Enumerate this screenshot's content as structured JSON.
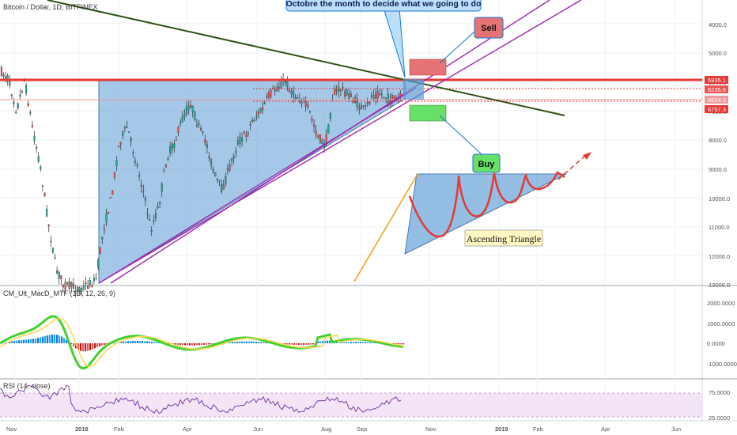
{
  "header": {
    "symbol": "Bitcoin / Dollar, 1D, BITFINEX"
  },
  "annotations": {
    "callout": "Octobre the month to decide what we going to do",
    "sell": "Sell",
    "buy": "Buy",
    "pattern": "Ascending Triangle"
  },
  "price_axis": {
    "ticks": [
      "4000.0",
      "5000.0",
      "6000.0",
      "7000.0",
      "8000.0",
      "9000.0",
      "10000.0",
      "11000.0",
      "12000.0",
      "13000.0"
    ],
    "badges": [
      {
        "text": "5935.1",
        "color": "#e53935"
      },
      {
        "text": "6235.6",
        "color": "#ef5350"
      },
      {
        "text": "6624.3",
        "color": "#ef9a9a"
      },
      {
        "text": "6757.3",
        "color": "#e53935"
      }
    ]
  },
  "macd": {
    "label": "CM_Ult_MacD_MTF (1D, 12, 26, 9)",
    "ticks": [
      "2000.0000",
      "1000.0000",
      "0.0000",
      "-1000.0000"
    ]
  },
  "rsi": {
    "label": "RSI (14, close)",
    "ticks": [
      "75.0000",
      "25.0000"
    ]
  },
  "time_axis": {
    "labels": [
      "Nov",
      "2018",
      "Feb",
      "Apr",
      "Jun",
      "Aug",
      "Sep",
      "Nov",
      "2019",
      "Feb",
      "Apr",
      "Jun"
    ]
  },
  "colors": {
    "resistance": "#e53935",
    "triangle_fill": "#5b9bd5",
    "support_line": "#9c27b0",
    "downtrend": "#33691e",
    "sell_box": "#e57373",
    "buy_box": "#66e066",
    "callout_bg": "#bbdefb",
    "rsi_band": "#f3e5f5",
    "candle_up": "#26a69a",
    "candle_down": "#ef5350"
  }
}
